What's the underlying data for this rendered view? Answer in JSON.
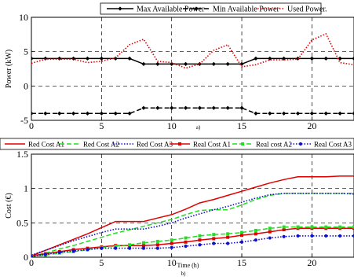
{
  "colors": {
    "black": "#000000",
    "red": "#e00000",
    "green": "#22dd22",
    "blue": "#1010c8",
    "grid": "#000000"
  },
  "chart_data": [
    {
      "type": "line",
      "panel_label": "a)",
      "ylabel": "Power (kW)",
      "xlabel": "",
      "xlim": [
        0,
        23
      ],
      "ylim": [
        -5,
        10
      ],
      "xticks": [
        0,
        5,
        10,
        15,
        20
      ],
      "yticks": [
        -5,
        0,
        5,
        10
      ],
      "grid": true,
      "legend_position": "top",
      "series": [
        {
          "name": "Max Available Power",
          "color": "#000000",
          "dash": "solid",
          "marker": "diamond",
          "x": [
            0,
            1,
            2,
            3,
            4,
            5,
            6,
            7,
            8,
            9,
            10,
            11,
            12,
            13,
            14,
            15,
            16,
            17,
            18,
            19,
            20,
            21,
            22,
            23
          ],
          "y": [
            4,
            4,
            4,
            4,
            4,
            4,
            4,
            4,
            3.2,
            3.2,
            3.2,
            3.2,
            3.2,
            3.2,
            3.2,
            3.2,
            4,
            4,
            4,
            4,
            4,
            4,
            4,
            4
          ]
        },
        {
          "name": "Min Available Power",
          "color": "#000000",
          "dash": "dashed",
          "marker": "diamond",
          "x": [
            0,
            1,
            2,
            3,
            4,
            5,
            6,
            7,
            8,
            9,
            10,
            11,
            12,
            13,
            14,
            15,
            16,
            17,
            18,
            19,
            20,
            21,
            22,
            23
          ],
          "y": [
            -4,
            -4,
            -4,
            -4,
            -4,
            -4,
            -4,
            -4,
            -3.2,
            -3.2,
            -3.2,
            -3.2,
            -3.2,
            -3.2,
            -3.2,
            -3.2,
            -4,
            -4,
            -4,
            -4,
            -4,
            -4,
            -4,
            -4
          ]
        },
        {
          "name": "Used Power.",
          "color": "#e00000",
          "dash": "dotted",
          "marker": "none",
          "x": [
            0,
            1,
            2,
            3,
            4,
            5,
            6,
            7,
            8,
            9,
            10,
            11,
            12,
            13,
            14,
            15,
            16,
            17,
            18,
            19,
            20,
            21,
            22,
            23
          ],
          "y": [
            3.3,
            3.9,
            3.9,
            3.9,
            3.4,
            3.6,
            4.1,
            6.0,
            6.8,
            3.6,
            3.4,
            2.6,
            3.2,
            5.2,
            6.0,
            2.8,
            3.1,
            3.8,
            3.8,
            3.9,
            6.7,
            7.6,
            3.4,
            3.1
          ]
        }
      ]
    },
    {
      "type": "line",
      "panel_label": "b)",
      "ylabel": "Cost (€)",
      "xlabel": "Time (h)",
      "xlim": [
        0,
        23
      ],
      "ylim": [
        0,
        1.5
      ],
      "xticks": [
        0,
        5,
        10,
        15,
        20
      ],
      "yticks": [
        0,
        0.5,
        1,
        1.5
      ],
      "ytick_labels": [
        "0",
        "0.5",
        "1",
        "1.5"
      ],
      "grid": true,
      "legend_position": "top",
      "series": [
        {
          "name": "Red Cost A1",
          "color": "#e00000",
          "dash": "solid",
          "marker": "none",
          "x": [
            0,
            1,
            2,
            3,
            4,
            5,
            6,
            7,
            8,
            9,
            10,
            11,
            12,
            13,
            14,
            15,
            16,
            17,
            18,
            19,
            20,
            21,
            22,
            23
          ],
          "y": [
            0.02,
            0.1,
            0.18,
            0.26,
            0.34,
            0.43,
            0.52,
            0.52,
            0.52,
            0.57,
            0.62,
            0.7,
            0.79,
            0.84,
            0.9,
            0.96,
            1.02,
            1.08,
            1.13,
            1.17,
            1.17,
            1.17,
            1.18,
            1.18
          ]
        },
        {
          "name": "Red Cost A2",
          "color": "#22dd22",
          "dash": "dashed",
          "marker": "none",
          "x": [
            0,
            1,
            2,
            3,
            4,
            5,
            6,
            7,
            8,
            9,
            10,
            11,
            12,
            13,
            14,
            15,
            16,
            17,
            18,
            19,
            20,
            21,
            22,
            23
          ],
          "y": [
            0.01,
            0.06,
            0.12,
            0.17,
            0.23,
            0.29,
            0.35,
            0.4,
            0.45,
            0.5,
            0.55,
            0.62,
            0.68,
            0.69,
            0.69,
            0.76,
            0.84,
            0.9,
            0.93,
            0.93,
            0.93,
            0.93,
            0.93,
            0.93
          ]
        },
        {
          "name": "Red Cost A3",
          "color": "#1010c8",
          "dash": "dotted",
          "marker": "none",
          "x": [
            0,
            1,
            2,
            3,
            4,
            5,
            6,
            7,
            8,
            9,
            10,
            11,
            12,
            13,
            14,
            15,
            16,
            17,
            18,
            19,
            20,
            21,
            22,
            23
          ],
          "y": [
            0.03,
            0.1,
            0.17,
            0.24,
            0.3,
            0.36,
            0.41,
            0.41,
            0.41,
            0.45,
            0.5,
            0.57,
            0.63,
            0.69,
            0.74,
            0.8,
            0.86,
            0.91,
            0.93,
            0.93,
            0.93,
            0.93,
            0.93,
            0.92
          ]
        },
        {
          "name": "Real Cost A1",
          "color": "#e00000",
          "dash": "solid",
          "marker": "square",
          "x": [
            0,
            1,
            2,
            3,
            4,
            5,
            6,
            7,
            8,
            9,
            10,
            11,
            12,
            13,
            14,
            15,
            16,
            17,
            18,
            19,
            20,
            21,
            22,
            23
          ],
          "y": [
            0.02,
            0.05,
            0.08,
            0.11,
            0.13,
            0.15,
            0.17,
            0.17,
            0.17,
            0.18,
            0.2,
            0.22,
            0.25,
            0.27,
            0.29,
            0.32,
            0.34,
            0.37,
            0.4,
            0.42,
            0.42,
            0.42,
            0.42,
            0.42
          ]
        },
        {
          "name": "Real cost A2",
          "color": "#22dd22",
          "dash": "dashed",
          "marker": "square",
          "x": [
            0,
            1,
            2,
            3,
            4,
            5,
            6,
            7,
            8,
            9,
            10,
            11,
            12,
            13,
            14,
            15,
            16,
            17,
            18,
            19,
            20,
            21,
            22,
            23
          ],
          "y": [
            0.01,
            0.03,
            0.06,
            0.08,
            0.11,
            0.14,
            0.16,
            0.18,
            0.21,
            0.23,
            0.25,
            0.28,
            0.31,
            0.33,
            0.34,
            0.36,
            0.39,
            0.42,
            0.44,
            0.44,
            0.44,
            0.44,
            0.44,
            0.44
          ]
        },
        {
          "name": "Real Cost A3",
          "color": "#1010c8",
          "dash": "dotted",
          "marker": "circle",
          "x": [
            0,
            1,
            2,
            3,
            4,
            5,
            6,
            7,
            8,
            9,
            10,
            11,
            12,
            13,
            14,
            15,
            16,
            17,
            18,
            19,
            20,
            21,
            22,
            23
          ],
          "y": [
            0.01,
            0.04,
            0.07,
            0.09,
            0.11,
            0.13,
            0.13,
            0.13,
            0.13,
            0.13,
            0.14,
            0.16,
            0.18,
            0.2,
            0.2,
            0.22,
            0.25,
            0.28,
            0.3,
            0.31,
            0.31,
            0.31,
            0.31,
            0.31
          ]
        }
      ]
    }
  ]
}
